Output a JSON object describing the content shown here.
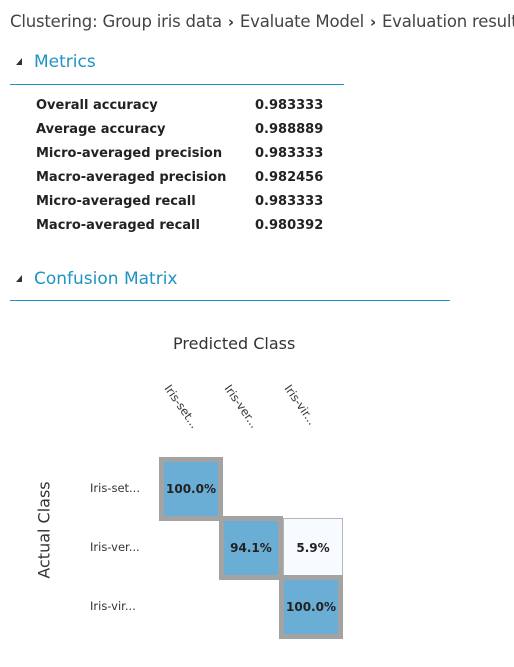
{
  "breadcrumb": {
    "items": [
      "Clustering: Group iris data",
      "Evaluate Model",
      "Evaluation results"
    ],
    "separator": "›"
  },
  "metrics": {
    "title": "Metrics",
    "rows": [
      {
        "label": "Overall accuracy",
        "value": "0.983333"
      },
      {
        "label": "Average accuracy",
        "value": "0.988889"
      },
      {
        "label": "Micro-averaged precision",
        "value": "0.983333"
      },
      {
        "label": "Macro-averaged precision",
        "value": "0.982456"
      },
      {
        "label": "Micro-averaged recall",
        "value": "0.983333"
      },
      {
        "label": "Macro-averaged recall",
        "value": "0.980392"
      }
    ]
  },
  "confusion": {
    "title": "Confusion Matrix",
    "predicted_label": "Predicted Class",
    "actual_label": "Actual Class",
    "columns": [
      "Iris-set...",
      "Iris-ver...",
      "Iris-vir..."
    ],
    "rows": [
      "Iris-set...",
      "Iris-ver...",
      "Iris-vir..."
    ],
    "cells": [
      [
        "100.0%",
        "",
        ""
      ],
      [
        "",
        "94.1%",
        "5.9%"
      ],
      [
        "",
        "",
        "100.0%"
      ]
    ],
    "colors": {
      "high": "#6aaed6",
      "low": "#f7fbff",
      "border": "#a3a3a3"
    }
  },
  "accent_color": "#1f93c4"
}
